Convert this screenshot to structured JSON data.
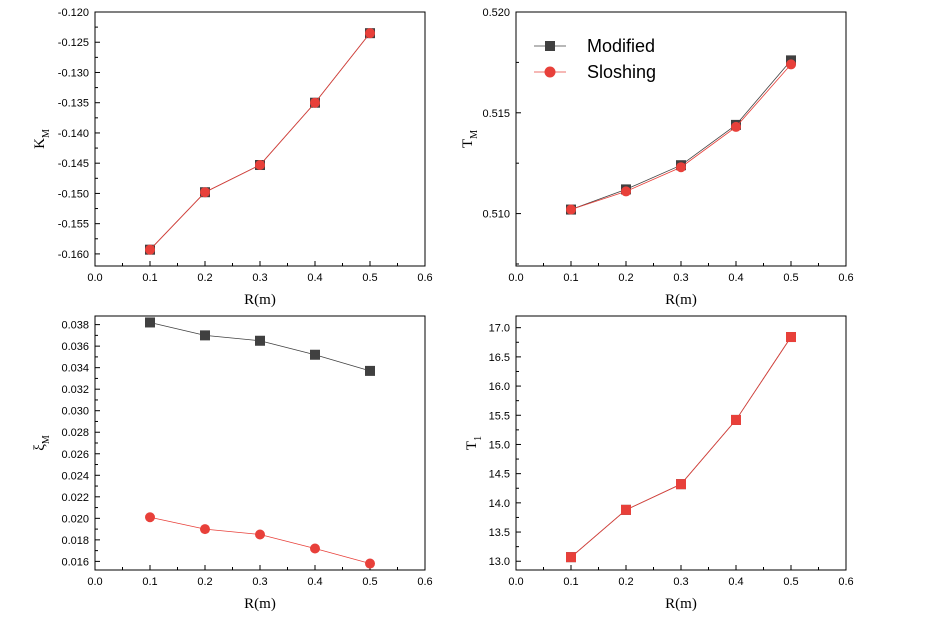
{
  "colors": {
    "modified": "#404040",
    "sloshing": "#e8403a",
    "axis": "#000000"
  },
  "legend": {
    "modified": "Modified",
    "sloshing": "Sloshing",
    "placement": "top-left of T_M panel"
  },
  "chart_data": [
    {
      "id": "km",
      "type": "line",
      "xlabel": "R(m)",
      "ylabel": "K",
      "ysub": "M",
      "xlim": [
        0.0,
        0.6
      ],
      "ylim": [
        -0.162,
        -0.12
      ],
      "xticks": [
        "0.0",
        "0.1",
        "0.2",
        "0.3",
        "0.4",
        "0.5",
        "0.6"
      ],
      "yticks": [
        "-0.120",
        "-0.125",
        "-0.130",
        "-0.135",
        "-0.140",
        "-0.145",
        "-0.150",
        "-0.155",
        "-0.160"
      ],
      "x": [
        0.1,
        0.2,
        0.3,
        0.4,
        0.5
      ],
      "series": [
        {
          "key": "modified",
          "marker": "square",
          "values": [
            -0.1593,
            -0.1498,
            -0.1453,
            -0.135,
            -0.1235
          ]
        },
        {
          "key": "sloshing",
          "marker": "circle",
          "values": [
            -0.1593,
            -0.1498,
            -0.1453,
            -0.135,
            -0.1235
          ]
        }
      ],
      "grid": false
    },
    {
      "id": "tm",
      "type": "line",
      "xlabel": "R(m)",
      "ylabel": "T",
      "ysub": "M",
      "xlim": [
        0.0,
        0.6
      ],
      "ylim": [
        0.5074,
        0.52
      ],
      "xticks": [
        "0.0",
        "0.1",
        "0.2",
        "0.3",
        "0.4",
        "0.5",
        "0.6"
      ],
      "yticks": [
        "0.510",
        "0.515",
        "0.520"
      ],
      "x": [
        0.1,
        0.2,
        0.3,
        0.4,
        0.5
      ],
      "series": [
        {
          "key": "modified",
          "marker": "square",
          "values": [
            0.5102,
            0.5112,
            0.5124,
            0.5144,
            0.5176
          ]
        },
        {
          "key": "sloshing",
          "marker": "circle",
          "values": [
            0.5102,
            0.5111,
            0.5123,
            0.5143,
            0.5174
          ]
        }
      ],
      "grid": false
    },
    {
      "id": "xi",
      "type": "line",
      "xlabel": "R(m)",
      "ylabel": "ξ",
      "ysub": "M",
      "xlim": [
        0.0,
        0.6
      ],
      "ylim": [
        0.0152,
        0.0388
      ],
      "xticks": [
        "0.0",
        "0.1",
        "0.2",
        "0.3",
        "0.4",
        "0.5",
        "0.6"
      ],
      "yticks": [
        "0.016",
        "0.018",
        "0.020",
        "0.022",
        "0.024",
        "0.026",
        "0.028",
        "0.030",
        "0.032",
        "0.034",
        "0.036",
        "0.038"
      ],
      "x": [
        0.1,
        0.2,
        0.3,
        0.4,
        0.5
      ],
      "series": [
        {
          "key": "modified",
          "marker": "square",
          "values": [
            0.0382,
            0.037,
            0.0365,
            0.0352,
            0.0337
          ]
        },
        {
          "key": "sloshing",
          "marker": "circle",
          "values": [
            0.0201,
            0.019,
            0.0185,
            0.0172,
            0.0158
          ]
        }
      ],
      "grid": false
    },
    {
      "id": "t1",
      "type": "line",
      "xlabel": "R(m)",
      "ylabel": "T",
      "ysub": "1",
      "xlim": [
        0.0,
        0.6
      ],
      "ylim": [
        12.85,
        17.2
      ],
      "xticks": [
        "0.0",
        "0.1",
        "0.2",
        "0.3",
        "0.4",
        "0.5",
        "0.6"
      ],
      "yticks": [
        "13.0",
        "13.5",
        "14.0",
        "14.5",
        "15.0",
        "15.5",
        "16.0",
        "16.5",
        "17.0"
      ],
      "x": [
        0.1,
        0.2,
        0.3,
        0.4,
        0.5
      ],
      "series": [
        {
          "key": "modified",
          "marker": "square",
          "values": [
            13.07,
            13.88,
            14.32,
            15.42,
            16.84
          ]
        },
        {
          "key": "sloshing",
          "marker": "square",
          "values": [
            13.07,
            13.88,
            14.32,
            15.42,
            16.84
          ]
        }
      ],
      "grid": false
    }
  ]
}
